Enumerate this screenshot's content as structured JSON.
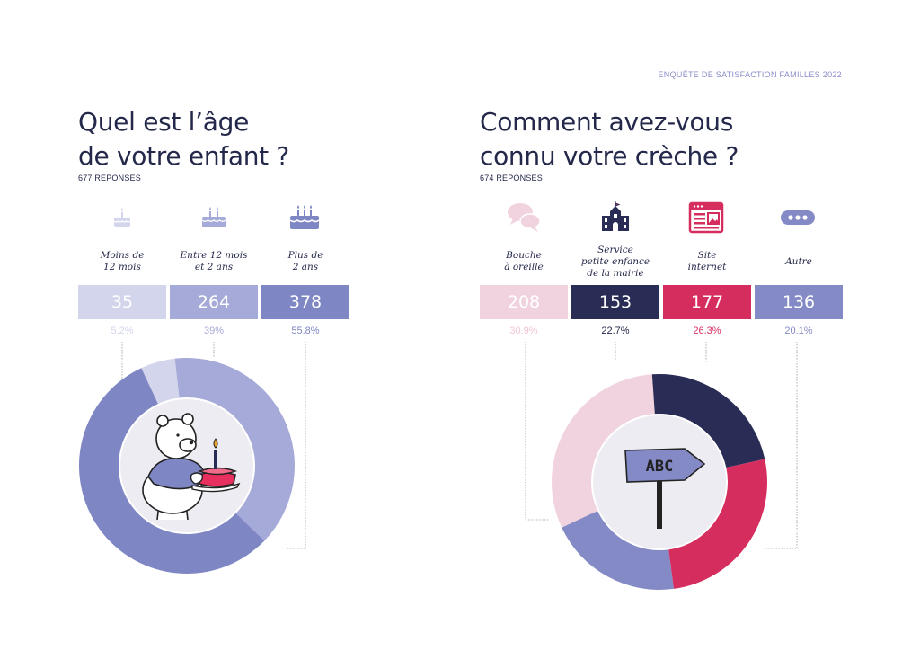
{
  "survey_title": "ENQUÊTE DE SATISFACTION FAMILLES 2022",
  "colors": {
    "title": "#24284a",
    "age": [
      "#d3d5ec",
      "#a6aad8",
      "#7f86c4"
    ],
    "source": [
      "#f1d3df",
      "#292c55",
      "#d62d5f",
      "#848ac6"
    ],
    "percent_source": [
      "#f1c4d2",
      "#24284a",
      "#d62d5f",
      "#848ac6"
    ]
  },
  "chart_data": [
    {
      "type": "pie",
      "title_lines": [
        "Quel est l’âge",
        "de votre enfant ?"
      ],
      "subtitle": "677 RÉPONSES",
      "categories": [
        "Moins de\n12 mois",
        "Entre 12 mois\net 2 ans",
        "Plus de\n2 ans"
      ],
      "values": [
        35,
        264,
        378
      ],
      "percent_labels": [
        "5.2%",
        "39%",
        "55.8%"
      ],
      "icons": [
        "cake-one-candle-icon",
        "cake-two-candles-icon",
        "cake-three-candles-icon"
      ]
    },
    {
      "type": "pie",
      "title_lines": [
        "Comment avez-vous",
        "connu votre crèche ?"
      ],
      "subtitle": "674 RÉPONSES",
      "categories": [
        "Bouche\nà oreille",
        "Service\npetite enfance\nde la mairie",
        "Site\ninternet",
        "Autre"
      ],
      "values": [
        208,
        153,
        177,
        136
      ],
      "percent_labels": [
        "30.9%",
        "22.7%",
        "26.3%",
        "20.1%"
      ],
      "icons": [
        "speech-bubbles-icon",
        "town-hall-icon",
        "website-icon",
        "more-dots-icon"
      ],
      "center_sign_text": "ABC"
    }
  ]
}
